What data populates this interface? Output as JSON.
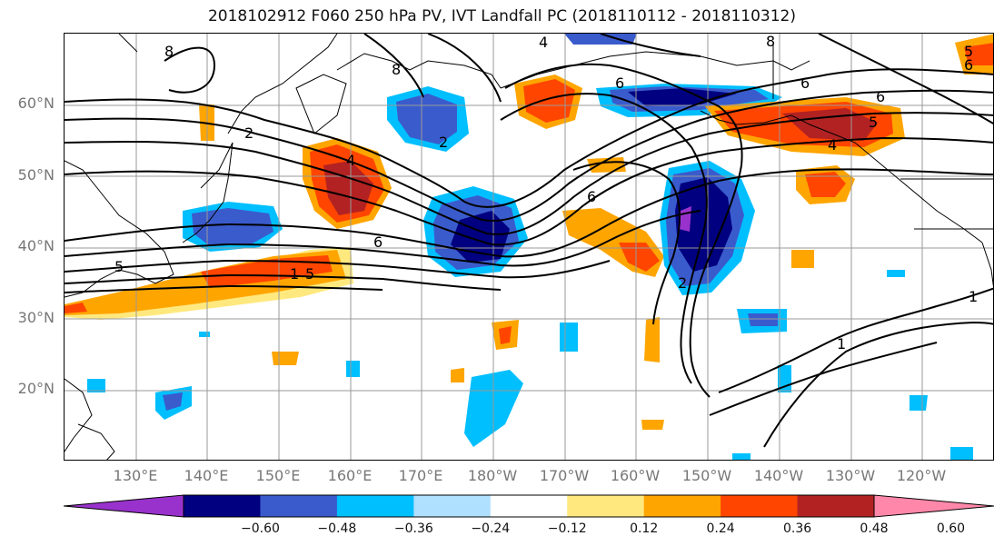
{
  "title": "2018102912 F060 250 hPa PV, IVT Landfall PC (2018110112 - 2018110312)",
  "lat_labels": [
    "60°N",
    "50°N",
    "40°N",
    "30°N",
    "20°N"
  ],
  "lon_labels": [
    "130°E",
    "140°E",
    "150°E",
    "160°E",
    "170°E",
    "180°W",
    "170°W",
    "160°W",
    "150°W",
    "140°W",
    "130°W",
    "120°W"
  ],
  "colorbar": {
    "ticks": [
      "−0.60",
      "−0.48",
      "−0.36",
      "−0.24",
      "−0.12",
      "0.12",
      "0.24",
      "0.36",
      "0.48",
      "0.60"
    ],
    "colors": [
      "#9932CC",
      "#000080",
      "#3A5BCC",
      "#00BFFF",
      "#B0E0FF",
      "#FFFFFF",
      "#FFE97F",
      "#FFA500",
      "#FF4500",
      "#B22222",
      "#FF88AA"
    ]
  },
  "contour_labels": [
    "8",
    "4",
    "8",
    "2",
    "5",
    "6",
    "5",
    "6",
    "2",
    "4",
    "6",
    "4",
    "1",
    "6",
    "2",
    "6",
    "8",
    "1",
    "1",
    "6",
    "5",
    "5"
  ]
}
